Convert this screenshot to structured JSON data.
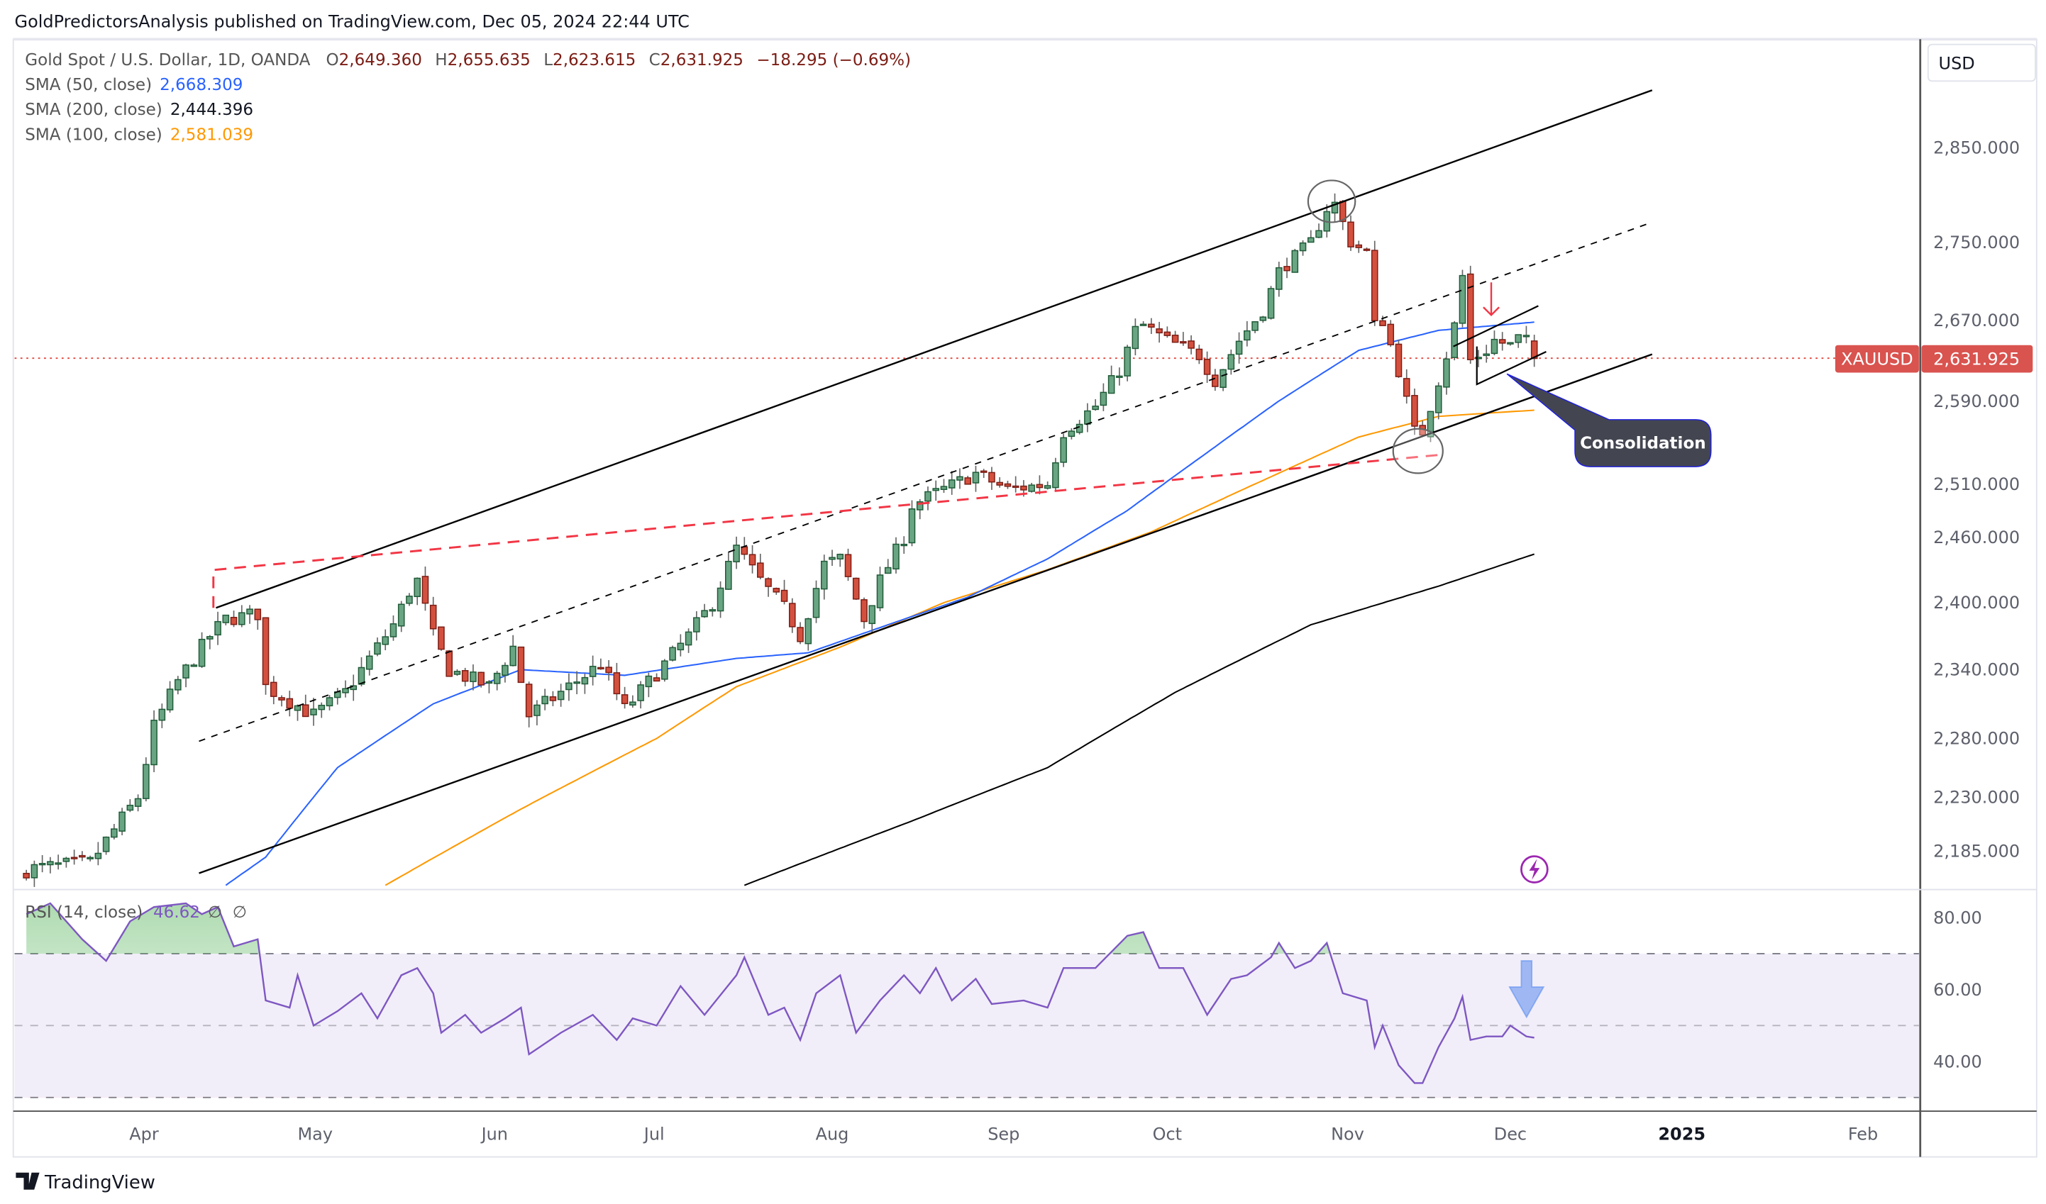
{
  "header": {
    "published": "GoldPredictorsAnalysis published on TradingView.com, Dec 05, 2024 22:44 UTC"
  },
  "legend": {
    "symbol": "Gold Spot / U.S. Dollar, 1D, OANDA",
    "o_label": "O",
    "o": "2,649.360",
    "h_label": "H",
    "h": "2,655.635",
    "l_label": "L",
    "l": "2,623.615",
    "c_label": "C",
    "c": "2,631.925",
    "change": "−18.295 (−0.69%)",
    "sma50_label": "SMA (50, close)",
    "sma50": "2,668.309",
    "sma200_label": "SMA (200, close)",
    "sma200": "2,444.396",
    "sma100_label": "SMA (100, close)",
    "sma100": "2,581.039",
    "rsi_label": "RSI (14, close)",
    "rsi": "46.62",
    "rsi_na1": "∅",
    "rsi_na2": "∅"
  },
  "currency": "USD",
  "price_label": {
    "symbol": "XAUUSD",
    "value": "2,631.925",
    "price": 2631.925
  },
  "annotation": {
    "consolidation": "Consolidation"
  },
  "footer": {
    "brand": "TradingView"
  },
  "colors": {
    "up": "#6aa583",
    "down": "#d4503e",
    "sma50": "#2962ff",
    "sma100": "#ff9800",
    "sma200": "#000000",
    "rsi": "#7e57c2",
    "price_line": "#e0463c"
  },
  "chart_data": {
    "type": "candlestick",
    "title": "Gold Spot / U.S. Dollar, 1D, OANDA",
    "x_unit": "trading day index (0 = mid-March 2024)",
    "price_scale": "log",
    "ylim": [
      2150,
      2930
    ],
    "y_ticks": [
      2850,
      2750,
      2670,
      2590,
      2510,
      2460,
      2400,
      2340,
      2280,
      2230,
      2185
    ],
    "y_tick_labels": [
      "2,850.000",
      "2,750.000",
      "2,670.000",
      "2,590.000",
      "2,510.000",
      "2,460.000",
      "2,400.000",
      "2,340.000",
      "2,280.000",
      "2,230.000",
      "2,185.000"
    ],
    "x_ticks": [
      {
        "label": "Apr",
        "day": 14.75
      },
      {
        "label": "May",
        "day": 36.2
      },
      {
        "label": "Jun",
        "day": 58.7
      },
      {
        "label": "Jul",
        "day": 78.7
      },
      {
        "label": "Aug",
        "day": 101
      },
      {
        "label": "Sep",
        "day": 122.5
      },
      {
        "label": "Oct",
        "day": 143
      },
      {
        "label": "Nov",
        "day": 165.6
      },
      {
        "label": "Dec",
        "day": 186
      },
      {
        "label": "2025",
        "day": 207.5
      },
      {
        "label": "Feb",
        "day": 230.2
      }
    ],
    "close_anchors": [
      [
        0,
        2170
      ],
      [
        8,
        2175
      ],
      [
        14,
        2230
      ],
      [
        16,
        2290
      ],
      [
        19,
        2330
      ],
      [
        23,
        2370
      ],
      [
        25,
        2385
      ],
      [
        29,
        2390
      ],
      [
        30,
        2325
      ],
      [
        36,
        2300
      ],
      [
        40,
        2320
      ],
      [
        46,
        2380
      ],
      [
        48,
        2410
      ],
      [
        49,
        2420
      ],
      [
        51,
        2370
      ],
      [
        53,
        2340
      ],
      [
        58,
        2325
      ],
      [
        61,
        2360
      ],
      [
        63,
        2300
      ],
      [
        67,
        2320
      ],
      [
        72,
        2345
      ],
      [
        75,
        2305
      ],
      [
        80,
        2345
      ],
      [
        83,
        2370
      ],
      [
        86,
        2400
      ],
      [
        89,
        2450
      ],
      [
        92,
        2420
      ],
      [
        95,
        2395
      ],
      [
        97,
        2370
      ],
      [
        100,
        2435
      ],
      [
        102,
        2440
      ],
      [
        105,
        2385
      ],
      [
        107,
        2420
      ],
      [
        110,
        2460
      ],
      [
        111,
        2490
      ],
      [
        115,
        2505
      ],
      [
        119,
        2520
      ],
      [
        123,
        2505
      ],
      [
        128,
        2510
      ],
      [
        130,
        2560
      ],
      [
        134,
        2585
      ],
      [
        137,
        2620
      ],
      [
        139,
        2660
      ],
      [
        140,
        2665
      ],
      [
        143,
        2650
      ],
      [
        147,
        2635
      ],
      [
        149,
        2610
      ],
      [
        152,
        2650
      ],
      [
        155,
        2680
      ],
      [
        157,
        2720
      ],
      [
        159,
        2735
      ],
      [
        161,
        2750
      ],
      [
        163,
        2785
      ],
      [
        164,
        2790
      ],
      [
        166,
        2750
      ],
      [
        168,
        2740
      ],
      [
        169,
        2665
      ],
      [
        170,
        2670
      ],
      [
        172,
        2620
      ],
      [
        173,
        2590
      ],
      [
        174,
        2560
      ],
      [
        175,
        2560
      ],
      [
        177,
        2610
      ],
      [
        178,
        2635
      ],
      [
        179,
        2665
      ],
      [
        180,
        2715
      ],
      [
        181,
        2630
      ],
      [
        182,
        2635
      ],
      [
        183,
        2640
      ],
      [
        184,
        2650
      ],
      [
        186,
        2645
      ],
      [
        187,
        2652
      ],
      [
        188,
        2649
      ],
      [
        189,
        2632
      ]
    ],
    "last_ohlc": {
      "open": 2649.36,
      "high": 2655.635,
      "low": 2623.615,
      "close": 2631.925
    },
    "sma50": [
      [
        25,
        2157
      ],
      [
        30,
        2180
      ],
      [
        39,
        2255
      ],
      [
        51,
        2310
      ],
      [
        62,
        2340
      ],
      [
        75,
        2335
      ],
      [
        89,
        2350
      ],
      [
        98,
        2355
      ],
      [
        108,
        2380
      ],
      [
        118,
        2405
      ],
      [
        128,
        2440
      ],
      [
        138,
        2485
      ],
      [
        148,
        2540
      ],
      [
        157,
        2590
      ],
      [
        167,
        2640
      ],
      [
        177,
        2660
      ],
      [
        189,
        2668.3
      ]
    ],
    "sma100": [
      [
        45,
        2157
      ],
      [
        62,
        2220
      ],
      [
        79,
        2280
      ],
      [
        89,
        2325
      ],
      [
        102,
        2360
      ],
      [
        115,
        2400
      ],
      [
        128,
        2430
      ],
      [
        141,
        2465
      ],
      [
        154,
        2510
      ],
      [
        167,
        2555
      ],
      [
        177,
        2575
      ],
      [
        189,
        2581
      ]
    ],
    "sma200": [
      [
        90,
        2157
      ],
      [
        111,
        2210
      ],
      [
        128,
        2255
      ],
      [
        144,
        2320
      ],
      [
        161,
        2380
      ],
      [
        177,
        2415
      ],
      [
        189,
        2444.4
      ]
    ],
    "rsi": {
      "ylim": [
        25,
        90
      ],
      "ticks": [
        80,
        60,
        40
      ],
      "tick_labels": [
        "80.00",
        "60.00",
        "40.00"
      ],
      "bands": [
        70,
        50,
        30
      ],
      "values": [
        [
          0,
          81
        ],
        [
          3,
          84
        ],
        [
          7,
          74
        ],
        [
          10,
          68
        ],
        [
          13,
          79
        ],
        [
          16,
          83
        ],
        [
          20,
          84
        ],
        [
          22,
          81
        ],
        [
          24,
          83
        ],
        [
          26,
          72
        ],
        [
          29,
          74
        ],
        [
          30,
          57
        ],
        [
          33,
          55
        ],
        [
          34,
          64
        ],
        [
          36,
          50
        ],
        [
          39,
          54
        ],
        [
          42,
          59
        ],
        [
          44,
          52
        ],
        [
          47,
          64
        ],
        [
          49,
          66
        ],
        [
          51,
          59
        ],
        [
          52,
          48
        ],
        [
          55,
          53
        ],
        [
          57,
          48
        ],
        [
          60,
          52
        ],
        [
          62,
          55
        ],
        [
          63,
          42
        ],
        [
          67,
          48
        ],
        [
          71,
          53
        ],
        [
          74,
          46
        ],
        [
          76,
          52
        ],
        [
          79,
          50
        ],
        [
          82,
          61
        ],
        [
          85,
          53
        ],
        [
          89,
          64
        ],
        [
          90,
          69
        ],
        [
          93,
          53
        ],
        [
          95,
          55
        ],
        [
          97,
          46
        ],
        [
          99,
          59
        ],
        [
          102,
          64
        ],
        [
          104,
          48
        ],
        [
          107,
          57
        ],
        [
          110,
          64
        ],
        [
          112,
          59
        ],
        [
          114,
          66
        ],
        [
          116,
          57
        ],
        [
          119,
          63
        ],
        [
          121,
          56
        ],
        [
          125,
          57
        ],
        [
          128,
          55
        ],
        [
          130,
          66
        ],
        [
          134,
          66
        ],
        [
          138,
          75
        ],
        [
          140,
          76
        ],
        [
          142,
          66
        ],
        [
          145,
          66
        ],
        [
          148,
          53
        ],
        [
          151,
          63
        ],
        [
          153,
          64
        ],
        [
          156,
          69
        ],
        [
          157,
          73
        ],
        [
          159,
          66
        ],
        [
          161,
          68
        ],
        [
          163,
          73
        ],
        [
          165,
          59
        ],
        [
          168,
          57
        ],
        [
          169,
          44
        ],
        [
          170,
          50
        ],
        [
          172,
          39
        ],
        [
          174,
          34
        ],
        [
          175,
          34
        ],
        [
          177,
          44
        ],
        [
          179,
          52
        ],
        [
          180,
          58
        ],
        [
          181,
          46
        ],
        [
          183,
          47
        ],
        [
          185,
          47
        ],
        [
          186,
          50
        ],
        [
          188,
          47
        ],
        [
          189,
          46.62
        ]
      ]
    }
  }
}
